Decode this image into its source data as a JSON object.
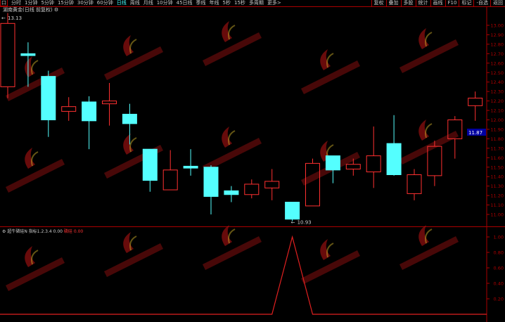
{
  "toolbar": {
    "box": "口",
    "items": [
      "分时",
      "1分钟",
      "5分钟",
      "15分钟",
      "30分钟",
      "60分钟",
      "日线",
      "周线",
      "月线",
      "10分钟",
      "45日线",
      "季线",
      "年线",
      "5秒",
      "15秒",
      "多周期",
      "更多>"
    ],
    "active": "日线",
    "right": [
      "复权",
      "叠加",
      "多股",
      "统计",
      "画线",
      "F10",
      "标记",
      "-自选",
      "返回"
    ]
  },
  "chart": {
    "title": "湖南黄金(日线 前复权)",
    "high_label": "13.13",
    "low_label": "10.93",
    "current_price": "11.87",
    "y_ticks": [
      "13.00",
      "12.90",
      "12.80",
      "12.70",
      "12.60",
      "12.50",
      "12.40",
      "12.30",
      "12.20",
      "12.10",
      "12.00",
      "11.90",
      "11.80",
      "11.70",
      "11.60",
      "11.50",
      "11.40",
      "11.30",
      "11.20",
      "11.10",
      "11.00"
    ],
    "up_color": "#ff3030",
    "down_color": "#54ffff"
  },
  "indicator": {
    "name": "超牛磷硅N",
    "params": "指标1.2.3.4 0.00",
    "label": "磷硅",
    "value": "0.00",
    "y_ticks": [
      "1.00",
      "0.80",
      "0.60",
      "0.40",
      "0.20"
    ]
  },
  "watermark": "指标123.cn",
  "chart_data": {
    "type": "candlestick",
    "ylim": [
      10.9,
      13.13
    ],
    "candles": [
      {
        "o": 12.35,
        "c": 13.02,
        "h": 13.13,
        "l": 12.23
      },
      {
        "o": 12.7,
        "c": 12.68,
        "h": 12.82,
        "l": 12.35
      },
      {
        "o": 12.46,
        "c": 12.0,
        "h": 12.52,
        "l": 11.82
      },
      {
        "o": 12.09,
        "c": 12.14,
        "h": 12.24,
        "l": 11.99
      },
      {
        "o": 12.19,
        "c": 11.99,
        "h": 12.25,
        "l": 11.69
      },
      {
        "o": 12.17,
        "c": 12.2,
        "h": 12.39,
        "l": 11.94
      },
      {
        "o": 12.06,
        "c": 11.96,
        "h": 12.17,
        "l": 11.74
      },
      {
        "o": 11.69,
        "c": 11.36,
        "h": 11.69,
        "l": 11.24
      },
      {
        "o": 11.26,
        "c": 11.47,
        "h": 11.68,
        "l": 11.26
      },
      {
        "o": 11.51,
        "c": 11.49,
        "h": 11.69,
        "l": 11.41
      },
      {
        "o": 11.5,
        "c": 11.19,
        "h": 11.52,
        "l": 11.0
      },
      {
        "o": 11.25,
        "c": 11.21,
        "h": 11.3,
        "l": 11.13
      },
      {
        "o": 11.21,
        "c": 11.32,
        "h": 11.37,
        "l": 11.17
      },
      {
        "o": 11.28,
        "c": 11.35,
        "h": 11.48,
        "l": 11.15
      },
      {
        "o": 11.13,
        "c": 10.95,
        "h": 11.13,
        "l": 10.93
      },
      {
        "o": 11.09,
        "c": 11.54,
        "h": 11.59,
        "l": 11.09
      },
      {
        "o": 11.62,
        "c": 11.47,
        "h": 11.62,
        "l": 11.33
      },
      {
        "o": 11.48,
        "c": 11.53,
        "h": 11.59,
        "l": 11.41
      },
      {
        "o": 11.45,
        "c": 11.62,
        "h": 11.93,
        "l": 11.28
      },
      {
        "o": 11.75,
        "c": 11.42,
        "h": 12.05,
        "l": 11.41
      },
      {
        "o": 11.22,
        "c": 11.42,
        "h": 11.48,
        "l": 11.15
      },
      {
        "o": 11.41,
        "c": 11.72,
        "h": 11.78,
        "l": 11.3
      },
      {
        "o": 11.8,
        "c": 12.0,
        "h": 12.04,
        "l": 11.59
      },
      {
        "o": 12.15,
        "c": 12.23,
        "h": 12.3,
        "l": 11.99
      }
    ],
    "indicator_values": [
      0,
      0,
      0,
      0,
      0,
      0,
      0,
      0,
      0,
      0,
      0,
      0,
      0,
      0,
      1,
      0,
      0,
      0,
      0,
      0,
      0,
      0,
      0,
      0
    ]
  }
}
